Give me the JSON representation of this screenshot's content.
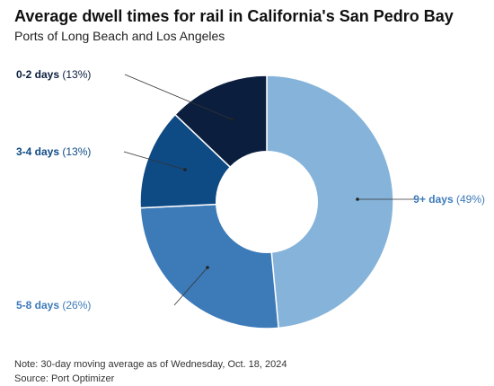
{
  "chart_data": {
    "type": "pie",
    "title": "Average dwell times for rail in California's San Pedro Bay",
    "subtitle": "Ports of Long Beach and Los Angeles",
    "donut": true,
    "slices": [
      {
        "label": "9+ days",
        "pct_text": "(49%)",
        "value": 49,
        "color": "#85b3d9"
      },
      {
        "label": "5-8 days",
        "pct_text": "(26%)",
        "value": 26,
        "color": "#3d7ab8"
      },
      {
        "label": "3-4 days",
        "pct_text": "(13%)",
        "value": 13,
        "color": "#0e4a84"
      },
      {
        "label": "0-2 days",
        "pct_text": "(13%)",
        "value": 13,
        "color": "#0b1e3e"
      }
    ]
  },
  "footer": {
    "note": "Note: 30-day moving average as of Wednesday, Oct. 18, 2024",
    "source": "Source: Port Optimizer"
  }
}
